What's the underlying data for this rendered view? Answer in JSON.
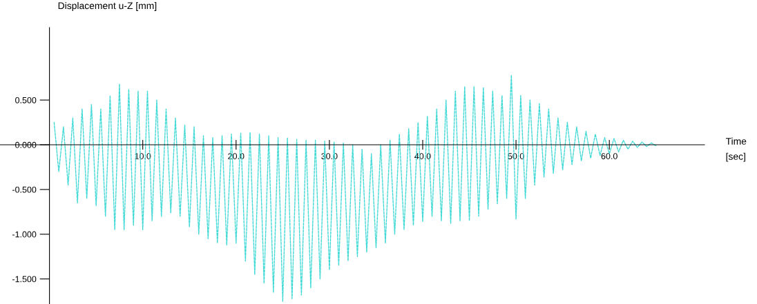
{
  "chart_data": {
    "type": "line",
    "xlabel": "Time\n[sec]",
    "ylabel": "Displacement u-Z [mm]",
    "xlim": [
      -5.3,
      70.2
    ],
    "ylim": [
      -1.78,
      1.31
    ],
    "xticks": [
      {
        "value": 10,
        "label": "10.0"
      },
      {
        "value": 20,
        "label": "20.0"
      },
      {
        "value": 30,
        "label": "30.0"
      },
      {
        "value": 40,
        "label": "40.0"
      },
      {
        "value": 50,
        "label": "50.0"
      },
      {
        "value": 60,
        "label": "60.0"
      }
    ],
    "yticks": [
      {
        "value": -1.5,
        "label": "-1.500"
      },
      {
        "value": -1.0,
        "label": "-1.000"
      },
      {
        "value": -0.5,
        "label": "-0.500"
      },
      {
        "value": 0,
        "label": "0.000"
      },
      {
        "value": 0.5,
        "label": "0.500"
      }
    ],
    "grid": false,
    "line_style": "dashed",
    "marker": "none",
    "series": [
      {
        "color": "#3fd9d6",
        "x": [
          0.5,
          1.0,
          1.5,
          2.0,
          2.5,
          3.0,
          3.5,
          4.0,
          4.5,
          5.0,
          5.5,
          6.0,
          6.5,
          7.0,
          7.5,
          8.0,
          8.5,
          9.0,
          9.5,
          10.0,
          10.5,
          11.0,
          11.5,
          12.0,
          12.5,
          13.0,
          13.5,
          14.0,
          14.5,
          15.0,
          15.5,
          16.0,
          16.5,
          17.0,
          17.5,
          18.0,
          18.5,
          19.0,
          19.5,
          20.0,
          20.5,
          21.0,
          21.5,
          22.0,
          22.5,
          23.0,
          23.5,
          24.0,
          24.5,
          25.0,
          25.5,
          26.0,
          26.5,
          27.0,
          27.5,
          28.0,
          28.5,
          29.0,
          29.5,
          30.0,
          30.5,
          31.0,
          31.5,
          32.0,
          32.5,
          33.0,
          33.5,
          34.0,
          34.5,
          35.0,
          35.5,
          36.0,
          36.5,
          37.0,
          37.5,
          38.0,
          38.5,
          39.0,
          39.5,
          40.0,
          40.5,
          41.0,
          41.5,
          42.0,
          42.5,
          43.0,
          43.5,
          44.0,
          44.5,
          45.0,
          45.5,
          46.0,
          46.5,
          47.0,
          47.5,
          48.0,
          48.5,
          49.0,
          49.5,
          50.0,
          50.5,
          51.0,
          51.5,
          52.0,
          52.5,
          53.0,
          53.5,
          54.0,
          54.5,
          55.0,
          55.5,
          56.0,
          56.5,
          57.0,
          57.5,
          58.0,
          58.5,
          59.0,
          59.5,
          60.0,
          60.5,
          61.0,
          61.5,
          62.0,
          62.5,
          63.0,
          63.5,
          64.0,
          64.5,
          65.0
        ],
        "values": [
          0.25,
          -0.3,
          0.2,
          -0.45,
          0.3,
          -0.65,
          0.4,
          -0.6,
          0.45,
          -0.68,
          0.4,
          -0.8,
          0.55,
          -0.95,
          0.68,
          -0.95,
          0.62,
          -0.9,
          0.6,
          -0.95,
          0.6,
          -0.85,
          0.5,
          -0.8,
          0.4,
          -0.76,
          0.3,
          -0.8,
          0.22,
          -0.92,
          0.2,
          -1.0,
          0.1,
          -1.05,
          0.08,
          -1.1,
          0.1,
          -1.12,
          0.12,
          -1.1,
          0.13,
          -1.3,
          0.14,
          -1.45,
          0.12,
          -1.55,
          0.1,
          -1.65,
          0.08,
          -1.75,
          0.08,
          -1.72,
          0.06,
          -1.68,
          0.05,
          -1.6,
          0.05,
          -1.5,
          0.04,
          -1.4,
          0.03,
          -1.35,
          0.02,
          -1.3,
          0.0,
          -1.25,
          -0.05,
          -1.2,
          -0.1,
          -1.15,
          0.0,
          -1.1,
          0.05,
          -1.0,
          0.12,
          -0.95,
          0.18,
          -0.9,
          0.25,
          -0.86,
          0.32,
          -0.8,
          0.4,
          -0.85,
          0.5,
          -0.88,
          0.6,
          -0.85,
          0.65,
          -0.85,
          0.65,
          -0.8,
          0.64,
          -0.72,
          0.6,
          -0.66,
          0.55,
          -0.6,
          0.78,
          -0.83,
          0.55,
          -0.6,
          0.5,
          -0.45,
          0.46,
          -0.36,
          0.4,
          -0.32,
          0.3,
          -0.28,
          0.25,
          -0.22,
          0.2,
          -0.18,
          0.15,
          -0.15,
          0.12,
          -0.12,
          0.08,
          -0.1,
          0.07,
          -0.08,
          0.05,
          -0.05,
          0.04,
          -0.03,
          0.03,
          -0.02,
          0.02,
          -0.01
        ]
      }
    ]
  }
}
